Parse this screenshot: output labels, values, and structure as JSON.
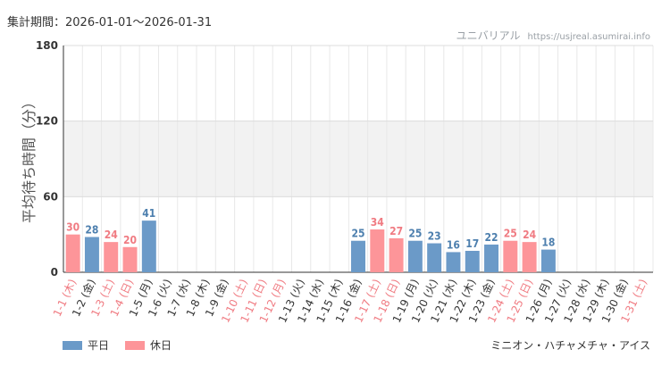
{
  "header": {
    "period_label": "集計期間：2026-01-01～2026-01-31",
    "site_name": "ユニバリアル",
    "site_url": "https://usjreal.asumirai.info"
  },
  "legend": {
    "weekday": "平日",
    "holiday": "休日"
  },
  "attraction": "ミニオン・ハチャメチャ・アイス",
  "colors": {
    "weekday": "#6b9ac8",
    "holiday": "#fd9599",
    "holiday_label": "#f07b82",
    "weekday_label": "#4d7fae"
  },
  "chart_data": {
    "type": "bar",
    "ylabel": "平均待ち時間（分）",
    "ylim": [
      0,
      180
    ],
    "yticks": [
      0,
      60,
      120,
      180
    ],
    "shaded_band": [
      60,
      120
    ],
    "grid": true,
    "categories": [
      "1-1 (木)",
      "1-2 (金)",
      "1-3 (土)",
      "1-4 (日)",
      "1-5 (月)",
      "1-6 (火)",
      "1-7 (水)",
      "1-8 (木)",
      "1-9 (金)",
      "1-10 (土)",
      "1-11 (日)",
      "1-12 (月)",
      "1-13 (火)",
      "1-14 (水)",
      "1-15 (木)",
      "1-16 (金)",
      "1-17 (土)",
      "1-18 (日)",
      "1-19 (月)",
      "1-20 (火)",
      "1-21 (水)",
      "1-22 (木)",
      "1-23 (金)",
      "1-24 (土)",
      "1-25 (日)",
      "1-26 (月)",
      "1-27 (火)",
      "1-28 (水)",
      "1-29 (木)",
      "1-30 (金)",
      "1-31 (土)"
    ],
    "values": [
      30,
      28,
      24,
      20,
      41,
      null,
      null,
      null,
      null,
      null,
      null,
      null,
      null,
      null,
      null,
      25,
      34,
      27,
      25,
      23,
      16,
      17,
      22,
      25,
      24,
      18,
      null,
      null,
      null,
      null,
      null
    ],
    "holiday": [
      true,
      false,
      true,
      true,
      false,
      false,
      false,
      false,
      false,
      true,
      true,
      true,
      false,
      false,
      false,
      false,
      true,
      true,
      false,
      false,
      false,
      false,
      false,
      true,
      true,
      false,
      false,
      false,
      false,
      false,
      true
    ]
  }
}
